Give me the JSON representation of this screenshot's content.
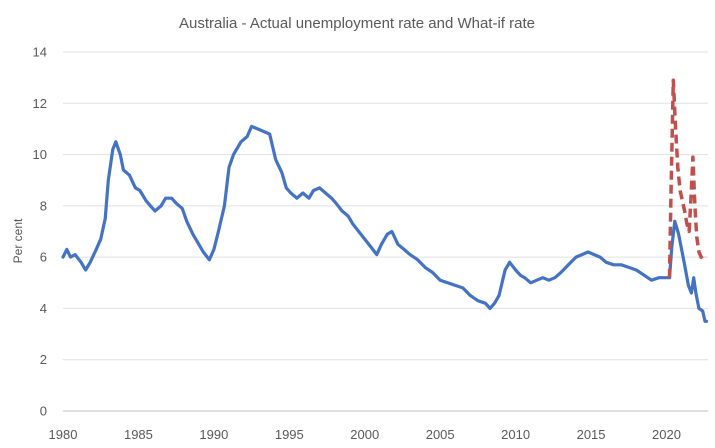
{
  "chart_data": {
    "type": "line",
    "title": "Australia - Actual unemployment rate and What-if rate",
    "ylabel": "Per cent",
    "xlabel": "",
    "xlim": [
      1980,
      2022.75
    ],
    "ylim": [
      0,
      14
    ],
    "x_ticks": [
      1980,
      1985,
      1990,
      1995,
      2000,
      2005,
      2010,
      2015,
      2020
    ],
    "y_ticks": [
      0,
      2,
      4,
      6,
      8,
      10,
      12,
      14
    ],
    "grid": "horizontal",
    "legend": "none",
    "series": [
      {
        "color": "#4472C4",
        "style": "solid",
        "points": [
          [
            1980.0,
            6.0
          ],
          [
            1980.25,
            6.3
          ],
          [
            1980.5,
            6.0
          ],
          [
            1980.8,
            6.1
          ],
          [
            1981.2,
            5.8
          ],
          [
            1981.5,
            5.5
          ],
          [
            1981.8,
            5.8
          ],
          [
            1982.2,
            6.3
          ],
          [
            1982.5,
            6.7
          ],
          [
            1982.8,
            7.5
          ],
          [
            1983.0,
            9.0
          ],
          [
            1983.3,
            10.2
          ],
          [
            1983.5,
            10.5
          ],
          [
            1983.8,
            10.0
          ],
          [
            1984.0,
            9.4
          ],
          [
            1984.4,
            9.2
          ],
          [
            1984.8,
            8.7
          ],
          [
            1985.1,
            8.6
          ],
          [
            1985.5,
            8.2
          ],
          [
            1985.8,
            8.0
          ],
          [
            1986.1,
            7.8
          ],
          [
            1986.5,
            8.0
          ],
          [
            1986.8,
            8.3
          ],
          [
            1987.2,
            8.3
          ],
          [
            1987.5,
            8.1
          ],
          [
            1987.9,
            7.9
          ],
          [
            1988.2,
            7.4
          ],
          [
            1988.6,
            6.9
          ],
          [
            1989.0,
            6.5
          ],
          [
            1989.3,
            6.2
          ],
          [
            1989.7,
            5.9
          ],
          [
            1990.0,
            6.3
          ],
          [
            1990.3,
            7.0
          ],
          [
            1990.7,
            8.0
          ],
          [
            1991.0,
            9.5
          ],
          [
            1991.3,
            10.0
          ],
          [
            1991.8,
            10.5
          ],
          [
            1992.2,
            10.7
          ],
          [
            1992.5,
            11.1
          ],
          [
            1992.9,
            11.0
          ],
          [
            1993.3,
            10.9
          ],
          [
            1993.7,
            10.8
          ],
          [
            1994.1,
            9.8
          ],
          [
            1994.5,
            9.3
          ],
          [
            1994.8,
            8.7
          ],
          [
            1995.1,
            8.5
          ],
          [
            1995.5,
            8.3
          ],
          [
            1995.9,
            8.5
          ],
          [
            1996.3,
            8.3
          ],
          [
            1996.6,
            8.6
          ],
          [
            1997.0,
            8.7
          ],
          [
            1997.4,
            8.5
          ],
          [
            1997.8,
            8.3
          ],
          [
            1998.1,
            8.1
          ],
          [
            1998.5,
            7.8
          ],
          [
            1998.9,
            7.6
          ],
          [
            1999.2,
            7.3
          ],
          [
            1999.6,
            7.0
          ],
          [
            2000.0,
            6.7
          ],
          [
            2000.4,
            6.4
          ],
          [
            2000.8,
            6.1
          ],
          [
            2001.1,
            6.5
          ],
          [
            2001.5,
            6.9
          ],
          [
            2001.8,
            7.0
          ],
          [
            2002.2,
            6.5
          ],
          [
            2002.6,
            6.3
          ],
          [
            2003.0,
            6.1
          ],
          [
            2003.5,
            5.9
          ],
          [
            2004.0,
            5.6
          ],
          [
            2004.5,
            5.4
          ],
          [
            2005.0,
            5.1
          ],
          [
            2005.5,
            5.0
          ],
          [
            2006.0,
            4.9
          ],
          [
            2006.5,
            4.8
          ],
          [
            2007.0,
            4.5
          ],
          [
            2007.5,
            4.3
          ],
          [
            2008.0,
            4.2
          ],
          [
            2008.3,
            4.0
          ],
          [
            2008.6,
            4.2
          ],
          [
            2008.9,
            4.5
          ],
          [
            2009.3,
            5.5
          ],
          [
            2009.6,
            5.8
          ],
          [
            2010.0,
            5.5
          ],
          [
            2010.3,
            5.3
          ],
          [
            2010.6,
            5.2
          ],
          [
            2011.0,
            5.0
          ],
          [
            2011.4,
            5.1
          ],
          [
            2011.8,
            5.2
          ],
          [
            2012.2,
            5.1
          ],
          [
            2012.6,
            5.2
          ],
          [
            2013.0,
            5.4
          ],
          [
            2013.5,
            5.7
          ],
          [
            2014.0,
            6.0
          ],
          [
            2014.4,
            6.1
          ],
          [
            2014.8,
            6.2
          ],
          [
            2015.2,
            6.1
          ],
          [
            2015.6,
            6.0
          ],
          [
            2016.0,
            5.8
          ],
          [
            2016.5,
            5.7
          ],
          [
            2017.0,
            5.7
          ],
          [
            2017.5,
            5.6
          ],
          [
            2018.0,
            5.5
          ],
          [
            2018.5,
            5.3
          ],
          [
            2019.0,
            5.1
          ],
          [
            2019.5,
            5.2
          ],
          [
            2020.0,
            5.2
          ],
          [
            2020.2,
            5.2
          ],
          [
            2020.35,
            6.4
          ],
          [
            2020.55,
            7.4
          ],
          [
            2020.8,
            6.9
          ],
          [
            2021.0,
            6.3
          ],
          [
            2021.2,
            5.7
          ],
          [
            2021.45,
            4.9
          ],
          [
            2021.65,
            4.6
          ],
          [
            2021.8,
            5.2
          ],
          [
            2021.95,
            4.6
          ],
          [
            2022.15,
            4.0
          ],
          [
            2022.4,
            3.9
          ],
          [
            2022.55,
            3.5
          ],
          [
            2022.65,
            3.5
          ]
        ]
      },
      {
        "color": "#C0504D",
        "style": "dashed",
        "points": [
          [
            2020.2,
            5.2
          ],
          [
            2020.3,
            8.5
          ],
          [
            2020.45,
            12.9
          ],
          [
            2020.6,
            11.0
          ],
          [
            2020.75,
            9.5
          ],
          [
            2020.9,
            8.6
          ],
          [
            2021.05,
            8.2
          ],
          [
            2021.2,
            7.8
          ],
          [
            2021.35,
            7.3
          ],
          [
            2021.5,
            7.0
          ],
          [
            2021.62,
            8.3
          ],
          [
            2021.75,
            9.9
          ],
          [
            2021.88,
            8.0
          ],
          [
            2022.0,
            6.8
          ],
          [
            2022.15,
            6.2
          ],
          [
            2022.3,
            6.0
          ],
          [
            2022.45,
            5.9
          ],
          [
            2022.6,
            6.0
          ]
        ]
      }
    ]
  }
}
